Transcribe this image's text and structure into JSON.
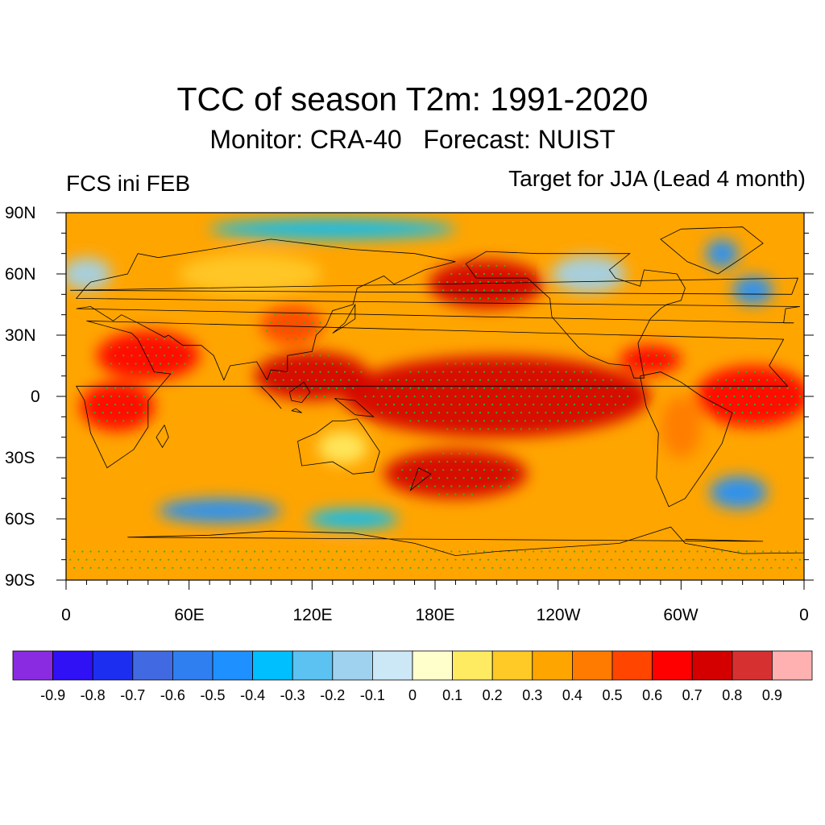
{
  "title": "TCC of season T2m: 1991-2020",
  "subtitle": "Monitor: CRA-40   Forecast: NUIST",
  "left_string": "FCS ini FEB",
  "right_string": "Target for JJA (Lead 4 month)",
  "lat_labels": [
    "90N",
    "60N",
    "30N",
    "0",
    "30S",
    "60S",
    "90S"
  ],
  "lon_labels": [
    "0",
    "60E",
    "120E",
    "180E",
    "120W",
    "60W",
    "0"
  ],
  "colorbar": {
    "colors": [
      "#8a2be2",
      "#3010f5",
      "#1c2ef0",
      "#4169e1",
      "#2f7ff0",
      "#1e90ff",
      "#00bfff",
      "#5bc2f2",
      "#9fd2ef",
      "#cce8f7",
      "#ffffcc",
      "#ffeb62",
      "#ffc926",
      "#ffa500",
      "#ff7b00",
      "#ff4500",
      "#ff0000",
      "#d40000",
      "#d63030",
      "#ffb0b0"
    ],
    "labels": [
      "-0.9",
      "-0.8",
      "-0.7",
      "-0.6",
      "-0.5",
      "-0.4",
      "-0.3",
      "-0.2",
      "-0.1",
      "0",
      "0.1",
      "0.2",
      "0.3",
      "0.4",
      "0.5",
      "0.6",
      "0.7",
      "0.8",
      "0.9"
    ]
  },
  "stipple_color": "#22bb22",
  "regions": [
    {
      "name": "polar-south-belt",
      "lon": 0,
      "lat": -82,
      "rx": 210,
      "ry": 9,
      "v": 0.3
    },
    {
      "name": "southern-ocean-blue-indian",
      "lon": 75,
      "lat": -56,
      "rx": 30,
      "ry": 6,
      "v": -0.4
    },
    {
      "name": "southern-ocean-blue-pacific",
      "lon": 140,
      "lat": -60,
      "rx": 22,
      "ry": 5,
      "v": -0.3
    },
    {
      "name": "south-atlantic-blue",
      "lon": 328,
      "lat": -47,
      "rx": 14,
      "ry": 8,
      "v": -0.5
    },
    {
      "name": "tropical-pacific-core",
      "lon": 210,
      "lat": 0,
      "rx": 75,
      "ry": 20,
      "v": 0.7
    },
    {
      "name": "north-pacific-red",
      "lon": 205,
      "lat": 55,
      "rx": 28,
      "ry": 12,
      "v": 0.7
    },
    {
      "name": "south-pacific-red",
      "lon": 190,
      "lat": -38,
      "rx": 35,
      "ry": 12,
      "v": 0.7
    },
    {
      "name": "maritime-continent",
      "lon": 120,
      "lat": 10,
      "rx": 28,
      "ry": 12,
      "v": 0.7
    },
    {
      "name": "arabia-africa",
      "lon": 40,
      "lat": 20,
      "rx": 25,
      "ry": 12,
      "v": 0.6
    },
    {
      "name": "central-africa",
      "lon": 25,
      "lat": -5,
      "rx": 18,
      "ry": 12,
      "v": 0.6
    },
    {
      "name": "atlantic-equatorial",
      "lon": 335,
      "lat": 0,
      "rx": 28,
      "ry": 15,
      "v": 0.6
    },
    {
      "name": "caribbean",
      "lon": 285,
      "lat": 18,
      "rx": 15,
      "ry": 7,
      "v": 0.6
    },
    {
      "name": "greenland-blue",
      "lon": 320,
      "lat": 70,
      "rx": 8,
      "ry": 7,
      "v": -0.5
    },
    {
      "name": "north-atlantic-blue",
      "lon": 335,
      "lat": 52,
      "rx": 10,
      "ry": 7,
      "v": -0.4
    },
    {
      "name": "siberia-mix",
      "lon": 90,
      "lat": 60,
      "rx": 35,
      "ry": 10,
      "v": 0.25
    },
    {
      "name": "arctic-blue",
      "lon": 130,
      "lat": 82,
      "rx": 60,
      "ry": 5,
      "v": -0.3
    },
    {
      "name": "europe-blue",
      "lon": 10,
      "lat": 60,
      "rx": 12,
      "ry": 8,
      "v": -0.2
    },
    {
      "name": "north-america-blue",
      "lon": 255,
      "lat": 60,
      "rx": 18,
      "ry": 9,
      "v": -0.15
    },
    {
      "name": "east-asia-red",
      "lon": 110,
      "lat": 35,
      "rx": 15,
      "ry": 10,
      "v": 0.5
    },
    {
      "name": "south-america",
      "lon": 300,
      "lat": -15,
      "rx": 10,
      "ry": 15,
      "v": 0.45
    },
    {
      "name": "australia-mix",
      "lon": 135,
      "lat": -25,
      "rx": 12,
      "ry": 8,
      "v": 0.15
    },
    {
      "name": "indian-ocean-south",
      "lon": 70,
      "lat": -25,
      "rx": 25,
      "ry": 10,
      "v": 0.3
    }
  ]
}
